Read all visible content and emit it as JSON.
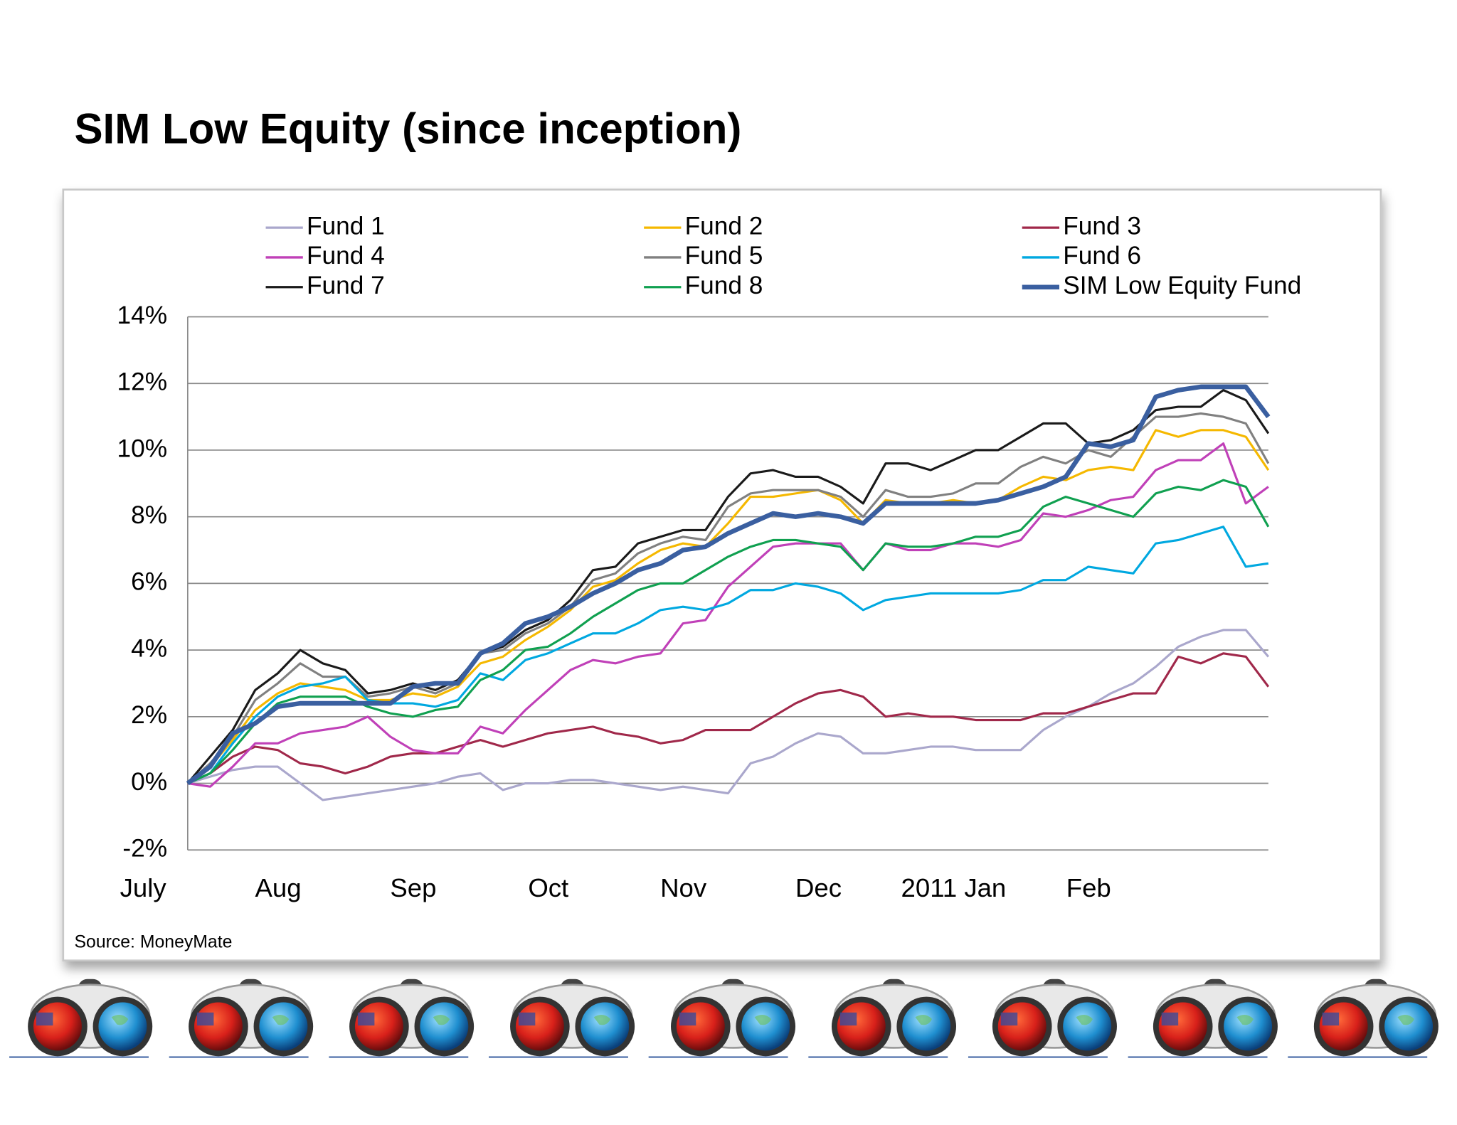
{
  "chart_data": {
    "type": "line",
    "title": "SIM Low Equity (since inception)",
    "source": "Source: MoneyMate",
    "categories": [
      "July",
      null,
      null,
      null,
      null,
      null,
      "Aug",
      null,
      null,
      null,
      null,
      null,
      "Sep",
      null,
      null,
      null,
      null,
      null,
      "Oct",
      null,
      null,
      null,
      null,
      null,
      "Nov",
      null,
      null,
      null,
      null,
      null,
      "Dec",
      null,
      null,
      null,
      null,
      null,
      "2011 Jan",
      null,
      null,
      null,
      null,
      null,
      "Feb",
      null,
      null,
      null,
      null,
      null,
      null
    ],
    "ylim": [
      -2,
      14
    ],
    "yticks": [
      {
        "value": -2,
        "label": "-2%"
      },
      {
        "value": 0,
        "label": "0%"
      },
      {
        "value": 2,
        "label": "2%"
      },
      {
        "value": 4,
        "label": "4%"
      },
      {
        "value": 6,
        "label": "6%"
      },
      {
        "value": 8,
        "label": "8%"
      },
      {
        "value": 10,
        "label": "10%"
      },
      {
        "value": 12,
        "label": "12%"
      },
      {
        "value": 14,
        "label": "14%"
      }
    ],
    "grid": true,
    "legend": "top",
    "series": [
      {
        "name": "Fund 1",
        "color": "#aaa7cc",
        "values": [
          0,
          0.2,
          0.4,
          0.5,
          0.5,
          0.0,
          -0.5,
          -0.4,
          -0.3,
          -0.2,
          -0.1,
          0.0,
          0.2,
          0.3,
          -0.2,
          0.0,
          0.0,
          0.1,
          0.1,
          0.0,
          -0.1,
          -0.2,
          -0.1,
          -0.2,
          -0.3,
          0.6,
          0.8,
          1.2,
          1.5,
          1.4,
          0.9,
          0.9,
          1.0,
          1.1,
          1.1,
          1.0,
          1.0,
          1.0,
          1.6,
          2.0,
          2.3,
          2.7,
          3.0,
          3.5,
          4.1,
          4.4,
          4.6,
          4.6,
          3.8
        ]
      },
      {
        "name": "Fund 2",
        "color": "#f5b800",
        "values": [
          0,
          0.5,
          1.3,
          2.2,
          2.7,
          3.0,
          2.9,
          2.8,
          2.5,
          2.5,
          2.7,
          2.6,
          2.9,
          3.6,
          3.8,
          4.3,
          4.7,
          5.2,
          5.9,
          6.1,
          6.6,
          7.0,
          7.2,
          7.1,
          7.8,
          8.6,
          8.6,
          8.7,
          8.8,
          8.5,
          7.8,
          8.5,
          8.4,
          8.4,
          8.5,
          8.4,
          8.5,
          8.9,
          9.2,
          9.1,
          9.4,
          9.5,
          9.4,
          10.6,
          10.4,
          10.6,
          10.6,
          10.4,
          9.4
        ]
      },
      {
        "name": "Fund 3",
        "color": "#a0284a",
        "values": [
          0,
          0.3,
          0.8,
          1.1,
          1.0,
          0.6,
          0.5,
          0.3,
          0.5,
          0.8,
          0.9,
          0.9,
          1.1,
          1.3,
          1.1,
          1.3,
          1.5,
          1.6,
          1.7,
          1.5,
          1.4,
          1.2,
          1.3,
          1.6,
          1.6,
          1.6,
          2.0,
          2.4,
          2.7,
          2.8,
          2.6,
          2.0,
          2.1,
          2.0,
          2.0,
          1.9,
          1.9,
          1.9,
          2.1,
          2.1,
          2.3,
          2.5,
          2.7,
          2.7,
          3.8,
          3.6,
          3.9,
          3.8,
          2.9
        ]
      },
      {
        "name": "Fund 4",
        "color": "#c040b8",
        "values": [
          0,
          -0.1,
          0.5,
          1.2,
          1.2,
          1.5,
          1.6,
          1.7,
          2.0,
          1.4,
          1.0,
          0.9,
          0.9,
          1.7,
          1.5,
          2.2,
          2.8,
          3.4,
          3.7,
          3.6,
          3.8,
          3.9,
          4.8,
          4.9,
          5.9,
          6.5,
          7.1,
          7.2,
          7.2,
          7.2,
          6.4,
          7.2,
          7.0,
          7.0,
          7.2,
          7.2,
          7.1,
          7.3,
          8.1,
          8.0,
          8.2,
          8.5,
          8.6,
          9.4,
          9.7,
          9.7,
          10.2,
          8.4,
          8.9
        ]
      },
      {
        "name": "Fund 5",
        "color": "#808080",
        "values": [
          0,
          0.6,
          1.4,
          2.5,
          3.0,
          3.6,
          3.2,
          3.2,
          2.6,
          2.7,
          2.9,
          2.7,
          3.0,
          3.9,
          4.0,
          4.5,
          4.8,
          5.3,
          6.1,
          6.3,
          6.9,
          7.2,
          7.4,
          7.3,
          8.3,
          8.7,
          8.8,
          8.8,
          8.8,
          8.6,
          8.0,
          8.8,
          8.6,
          8.6,
          8.7,
          9.0,
          9.0,
          9.5,
          9.8,
          9.6,
          10.0,
          9.8,
          10.4,
          11.0,
          11.0,
          11.1,
          11.0,
          10.8,
          9.6
        ]
      },
      {
        "name": "Fund 6",
        "color": "#00a8e0",
        "values": [
          0,
          0.3,
          1.2,
          2.0,
          2.6,
          2.9,
          3.0,
          3.2,
          2.5,
          2.4,
          2.4,
          2.3,
          2.5,
          3.3,
          3.1,
          3.7,
          3.9,
          4.2,
          4.5,
          4.5,
          4.8,
          5.2,
          5.3,
          5.2,
          5.4,
          5.8,
          5.8,
          6.0,
          5.9,
          5.7,
          5.2,
          5.5,
          5.6,
          5.7,
          5.7,
          5.7,
          5.7,
          5.8,
          6.1,
          6.1,
          6.5,
          6.4,
          6.3,
          7.2,
          7.3,
          7.5,
          7.7,
          6.5,
          6.6
        ]
      },
      {
        "name": "Fund 7",
        "color": "#1a1a1a",
        "values": [
          0,
          0.8,
          1.6,
          2.8,
          3.3,
          4.0,
          3.6,
          3.4,
          2.7,
          2.8,
          3.0,
          2.8,
          3.1,
          3.9,
          4.1,
          4.6,
          4.9,
          5.5,
          6.4,
          6.5,
          7.2,
          7.4,
          7.6,
          7.6,
          8.6,
          9.3,
          9.4,
          9.2,
          9.2,
          8.9,
          8.4,
          9.6,
          9.6,
          9.4,
          9.7,
          10.0,
          10.0,
          10.4,
          10.8,
          10.8,
          10.2,
          10.3,
          10.6,
          11.2,
          11.3,
          11.3,
          11.8,
          11.5,
          10.5
        ]
      },
      {
        "name": "Fund 8",
        "color": "#10a050",
        "values": [
          0,
          0.3,
          1.0,
          1.8,
          2.4,
          2.6,
          2.6,
          2.6,
          2.3,
          2.1,
          2.0,
          2.2,
          2.3,
          3.1,
          3.4,
          4.0,
          4.1,
          4.5,
          5.0,
          5.4,
          5.8,
          6.0,
          6.0,
          6.4,
          6.8,
          7.1,
          7.3,
          7.3,
          7.2,
          7.1,
          6.4,
          7.2,
          7.1,
          7.1,
          7.2,
          7.4,
          7.4,
          7.6,
          8.3,
          8.6,
          8.4,
          8.2,
          8.0,
          8.7,
          8.9,
          8.8,
          9.1,
          8.9,
          7.7
        ]
      },
      {
        "name": "SIM Low Equity Fund",
        "color": "#3a5fa0",
        "values": [
          0,
          0.5,
          1.5,
          1.8,
          2.3,
          2.4,
          2.4,
          2.4,
          2.4,
          2.4,
          2.9,
          3.0,
          3.0,
          3.9,
          4.2,
          4.8,
          5.0,
          5.3,
          5.7,
          6.0,
          6.4,
          6.6,
          7.0,
          7.1,
          7.5,
          7.8,
          8.1,
          8.0,
          8.1,
          8.0,
          7.8,
          8.4,
          8.4,
          8.4,
          8.4,
          8.4,
          8.5,
          8.7,
          8.9,
          9.2,
          10.2,
          10.1,
          10.3,
          11.6,
          11.8,
          11.9,
          11.9,
          11.9,
          11.0
        ]
      }
    ]
  }
}
